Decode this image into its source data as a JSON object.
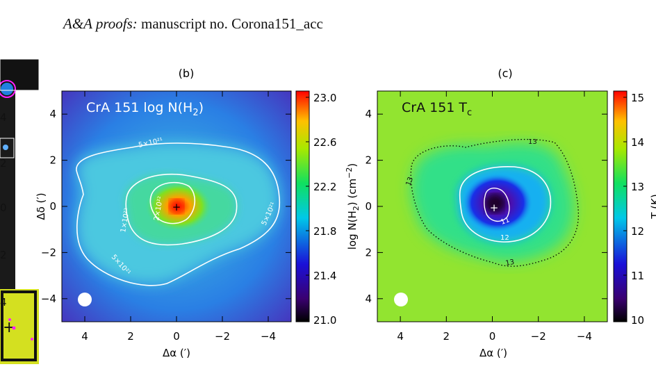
{
  "header": {
    "journal": "A&A proofs:",
    "manuscript": "manuscript no. Corona151_acc"
  },
  "panel_b": {
    "label": "(b)",
    "map_title": "CrA 151 log N(H",
    "map_title_sub": "2",
    "map_title_end": ")",
    "xlabel": "Δα (′)",
    "ylabel": "Δδ (′)",
    "cbar_label": "log N(H",
    "cbar_label_sub": "2",
    "cbar_label_end": ") (cm",
    "cbar_label_sup": "−2",
    "cbar_label_close": ")",
    "contour_labels": [
      "5×10²¹",
      "5×10²¹",
      "5×10²¹",
      "1×10²²",
      "2×10²²"
    ]
  },
  "panel_c": {
    "label": "(c)",
    "map_title": "CrA 151 T",
    "map_title_sub": "c",
    "xlabel": "Δα (′)",
    "cbar_label": "T (K)",
    "contour_labels": [
      "13",
      "13",
      "13",
      "12",
      "11"
    ]
  },
  "chart_data": [
    {
      "type": "heatmap",
      "title": "CrA 151 log N(H2)",
      "xlabel": "Δα (′)",
      "ylabel": "Δδ (′)",
      "xlim": [
        5,
        -5
      ],
      "ylim": [
        -5,
        5
      ],
      "x_ticks": [
        4,
        2,
        0,
        -2,
        -4
      ],
      "y_ticks": [
        4,
        2,
        0,
        -2,
        -4
      ],
      "tick_labels_x": [
        "4",
        "2",
        "0",
        "−2",
        "−4"
      ],
      "tick_labels_y": [
        "4",
        "2",
        "0",
        "−2",
        "−4"
      ],
      "colorbar": {
        "label": "log N(H2) (cm−2)",
        "range": [
          21.0,
          23.0
        ],
        "ticks": [
          "23.0",
          "22.6",
          "22.2",
          "21.8",
          "21.4",
          "21.0"
        ]
      },
      "peak": {
        "x": 0,
        "y": 0
      },
      "contours": [
        "5×10²¹",
        "1×10²²",
        "2×10²²"
      ],
      "beam": "white disk, lower-left"
    },
    {
      "type": "heatmap",
      "title": "CrA 151 Tc",
      "xlabel": "Δα (′)",
      "ylabel": "",
      "xlim": [
        5,
        -5
      ],
      "ylim": [
        -5,
        5
      ],
      "x_ticks": [
        4,
        2,
        0,
        -2,
        -4
      ],
      "tick_labels_x": [
        "4",
        "2",
        "0",
        "−2",
        "−4"
      ],
      "tick_labels_y": [
        "4",
        "2",
        "0",
        "2",
        "4"
      ],
      "colorbar": {
        "label": "T (K)",
        "range": [
          10,
          15
        ],
        "ticks": [
          "15",
          "14",
          "13",
          "12",
          "11",
          "10"
        ]
      },
      "minimum": {
        "x": 0,
        "y": 0
      },
      "contours": [
        "11",
        "12",
        "13"
      ],
      "beam": "white disk, lower-left"
    }
  ]
}
